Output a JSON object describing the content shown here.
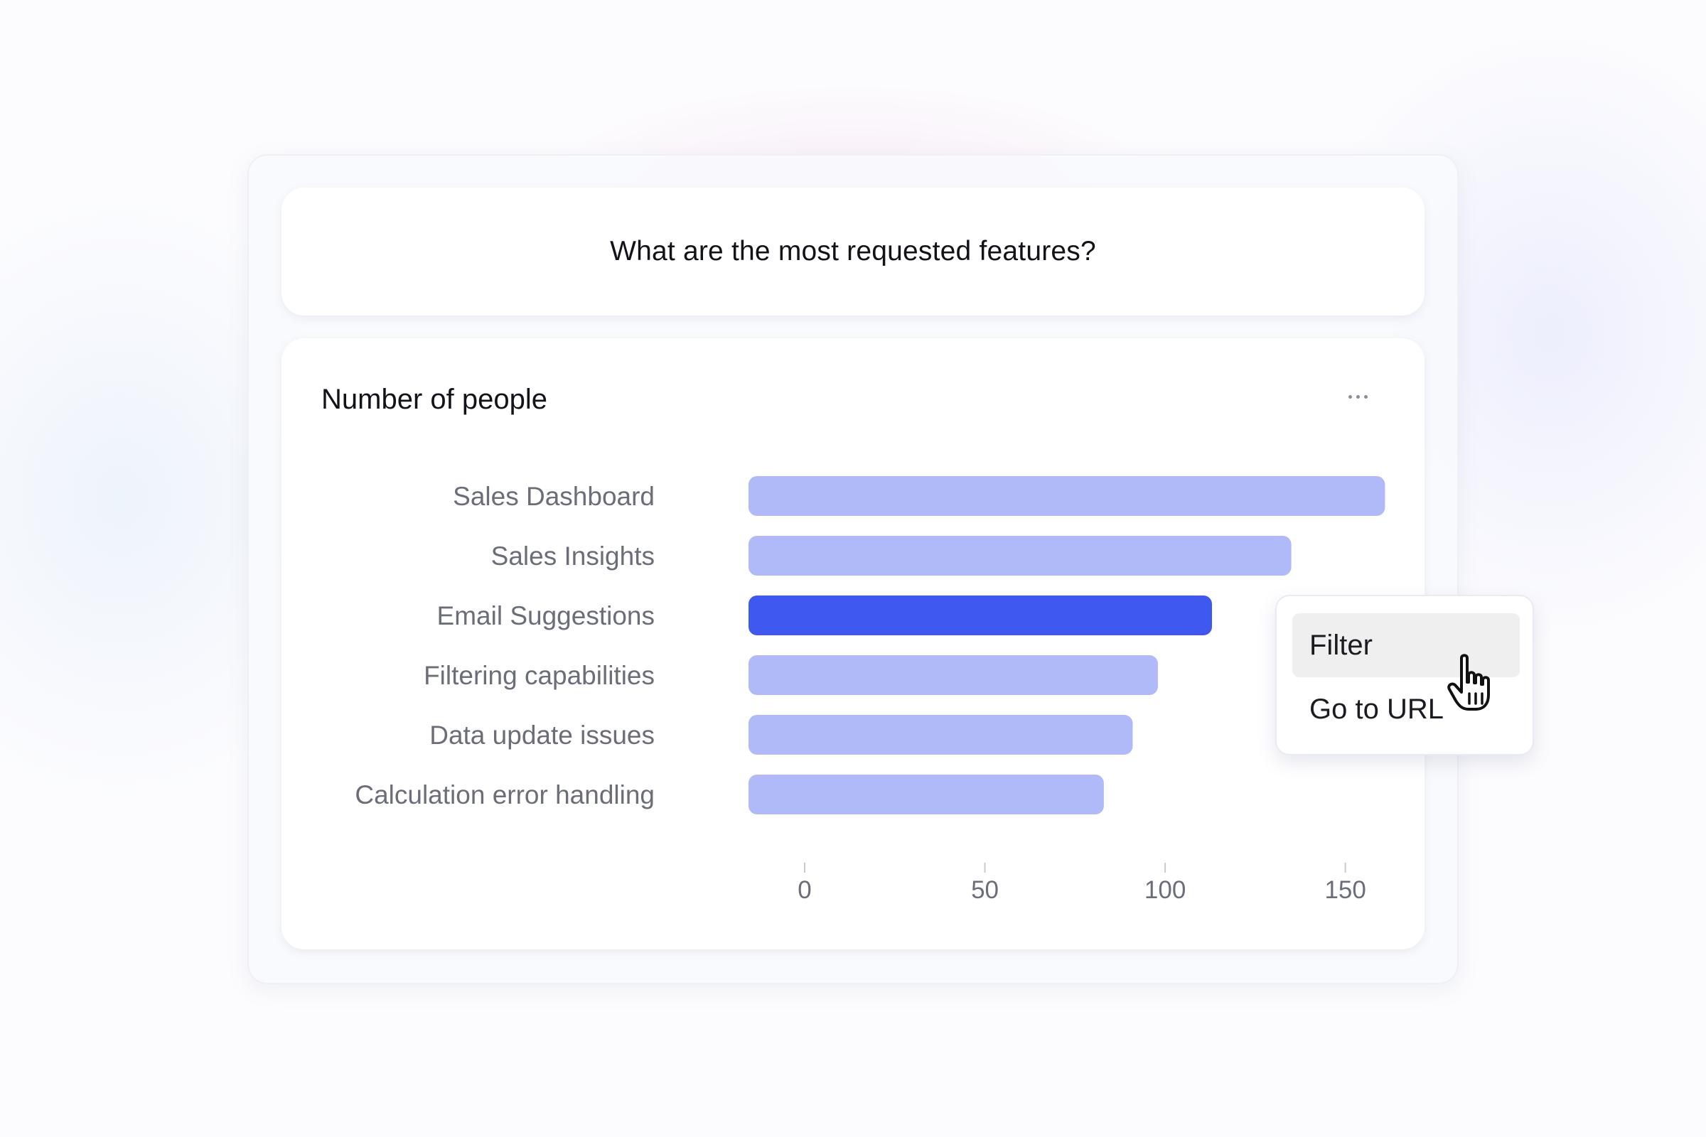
{
  "question": "What are the most requested features?",
  "chart_card": {
    "title": "Number of people",
    "more_icon": "more-horizontal-icon"
  },
  "context_menu": {
    "items": [
      "Filter",
      "Go to URL"
    ],
    "hovered": "Filter",
    "cursor_icon": "hand-pointer-icon"
  },
  "colors": {
    "bar": "#b0baf8",
    "bar_highlight": "#3f58f0",
    "label_text": "#6b6e78"
  },
  "chart_data": {
    "type": "bar",
    "orientation": "horizontal",
    "title": "Number of people",
    "categories": [
      "Sales Dashboard",
      "Sales Insights",
      "Email Suggestions",
      "Filtering capabilities",
      "Data update issues",
      "Calculation error handling"
    ],
    "values": [
      161,
      135,
      113,
      98,
      91,
      83
    ],
    "highlighted": "Email Suggestions",
    "xticks": [
      0,
      50,
      100,
      150
    ],
    "xlim": [
      0,
      155
    ],
    "grid": false,
    "legend": "none"
  }
}
